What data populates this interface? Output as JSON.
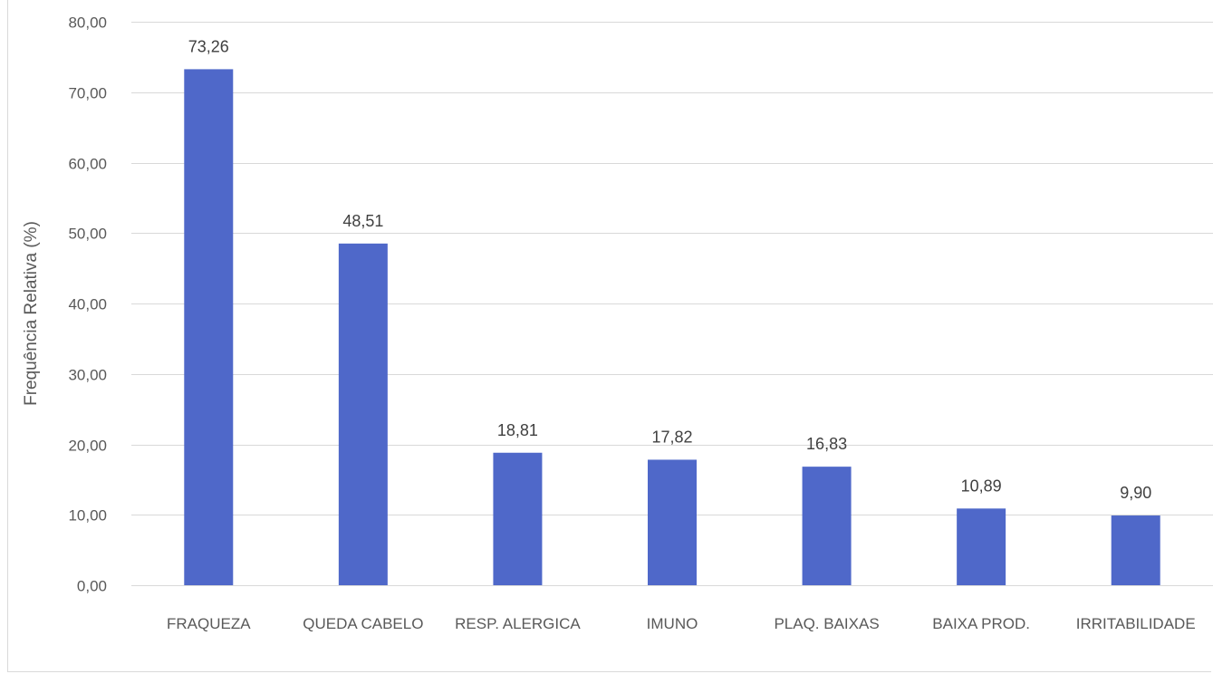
{
  "chart_data": {
    "type": "bar",
    "title": "",
    "xlabel": "",
    "ylabel": "Frequência Relativa (%)",
    "ylim": [
      0,
      80
    ],
    "yticks": [
      "0,00",
      "10,00",
      "20,00",
      "30,00",
      "40,00",
      "50,00",
      "60,00",
      "70,00",
      "80,00"
    ],
    "categories": [
      "FRAQUEZA",
      "QUEDA CABELO",
      "RESP. ALERGICA",
      "IMUNO",
      "PLAQ. BAIXAS",
      "BAIXA PROD.",
      "IRRITABILIDADE"
    ],
    "values": [
      73.26,
      48.51,
      18.81,
      17.82,
      16.83,
      10.89,
      9.9
    ],
    "value_labels": [
      "73,26",
      "48,51",
      "18,81",
      "17,82",
      "16,83",
      "10,89",
      "9,90"
    ],
    "grid": true,
    "bar_color": "#4f68c9",
    "grid_color": "#d9d9d9"
  }
}
